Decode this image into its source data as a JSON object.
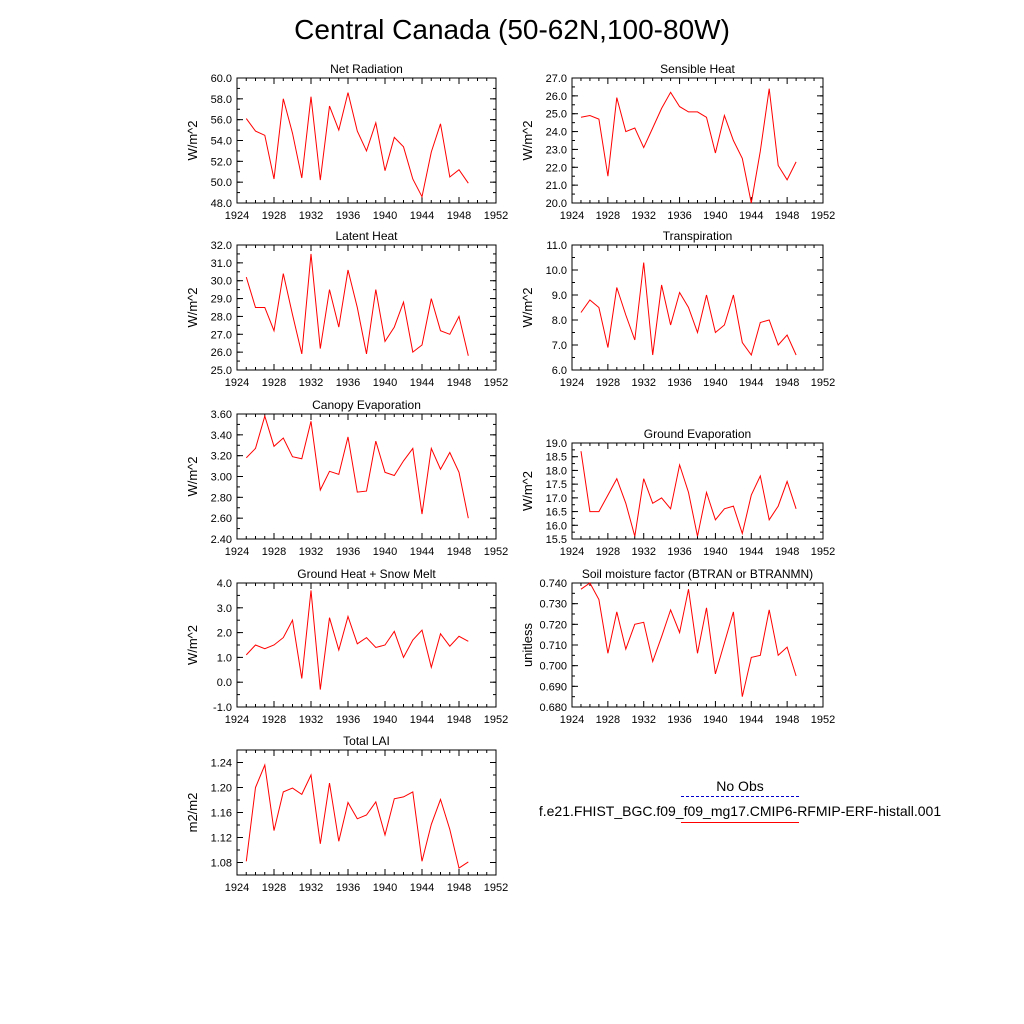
{
  "title": "Central Canada (50-62N,100-80W)",
  "colors": {
    "series": "#ff0000",
    "obs": "#0000cc",
    "axis": "#000000"
  },
  "legend": {
    "obs_label": "No Obs",
    "model_label": "f.e21.FHIST_BGC.f09_f09_mg17.CMIP6-RFMIP-ERF-histall.001"
  },
  "chart_data": [
    {
      "type": "line",
      "title": "Net Radiation",
      "xlabel": "",
      "ylabel": "W/m^2",
      "xlim": [
        1924,
        1952
      ],
      "ylim": [
        48,
        60
      ],
      "xticks": [
        "1924",
        "1928",
        "1932",
        "1936",
        "1940",
        "1944",
        "1948",
        "1952"
      ],
      "yticks": [
        "48.0",
        "50.0",
        "52.0",
        "54.0",
        "56.0",
        "58.0",
        "60.0"
      ],
      "x": [
        1925,
        1926,
        1927,
        1928,
        1929,
        1930,
        1931,
        1932,
        1933,
        1934,
        1935,
        1936,
        1937,
        1938,
        1939,
        1940,
        1941,
        1942,
        1943,
        1944,
        1945,
        1946,
        1947,
        1948,
        1949
      ],
      "series": [
        {
          "values": [
            56.1,
            54.9,
            54.5,
            50.3,
            58.0,
            54.7,
            50.4,
            58.2,
            50.2,
            57.3,
            55.0,
            58.6,
            54.9,
            53.0,
            55.7,
            51.1,
            54.3,
            53.4,
            50.3,
            48.6,
            52.9,
            55.6,
            50.5,
            51.2,
            49.9
          ]
        }
      ]
    },
    {
      "type": "line",
      "title": "Sensible Heat",
      "xlabel": "",
      "ylabel": "W/m^2",
      "xlim": [
        1924,
        1952
      ],
      "ylim": [
        20,
        27
      ],
      "xticks": [
        "1924",
        "1928",
        "1932",
        "1936",
        "1940",
        "1944",
        "1948",
        "1952"
      ],
      "yticks": [
        "20.0",
        "21.0",
        "22.0",
        "23.0",
        "24.0",
        "25.0",
        "26.0",
        "27.0"
      ],
      "x": [
        1925,
        1926,
        1927,
        1928,
        1929,
        1930,
        1931,
        1932,
        1933,
        1934,
        1935,
        1936,
        1937,
        1938,
        1939,
        1940,
        1941,
        1942,
        1943,
        1944,
        1945,
        1946,
        1947,
        1948,
        1949
      ],
      "series": [
        {
          "values": [
            24.8,
            24.9,
            24.7,
            21.5,
            25.9,
            24.0,
            24.2,
            23.1,
            24.2,
            25.3,
            26.2,
            25.4,
            25.1,
            25.1,
            24.8,
            22.8,
            24.9,
            23.5,
            22.5,
            20.0,
            22.9,
            26.4,
            22.1,
            21.3,
            22.3
          ]
        }
      ]
    },
    {
      "type": "line",
      "title": "Latent Heat",
      "xlabel": "",
      "ylabel": "W/m^2",
      "xlim": [
        1924,
        1952
      ],
      "ylim": [
        25,
        32
      ],
      "xticks": [
        "1924",
        "1928",
        "1932",
        "1936",
        "1940",
        "1944",
        "1948",
        "1952"
      ],
      "yticks": [
        "25.0",
        "26.0",
        "27.0",
        "28.0",
        "29.0",
        "30.0",
        "31.0",
        "32.0"
      ],
      "x": [
        1925,
        1926,
        1927,
        1928,
        1929,
        1930,
        1931,
        1932,
        1933,
        1934,
        1935,
        1936,
        1937,
        1938,
        1939,
        1940,
        1941,
        1942,
        1943,
        1944,
        1945,
        1946,
        1947,
        1948,
        1949
      ],
      "series": [
        {
          "values": [
            30.2,
            28.5,
            28.5,
            27.2,
            30.4,
            28.1,
            25.9,
            31.5,
            26.2,
            29.5,
            27.4,
            30.6,
            28.5,
            25.9,
            29.5,
            26.6,
            27.4,
            28.8,
            26.0,
            26.4,
            29.0,
            27.2,
            27.0,
            28.0,
            25.8
          ]
        }
      ]
    },
    {
      "type": "line",
      "title": "Transpiration",
      "xlabel": "",
      "ylabel": "W/m^2",
      "xlim": [
        1924,
        1952
      ],
      "ylim": [
        6,
        11
      ],
      "xticks": [
        "1924",
        "1928",
        "1932",
        "1936",
        "1940",
        "1944",
        "1948",
        "1952"
      ],
      "yticks": [
        "6.0",
        "7.0",
        "8.0",
        "9.0",
        "10.0",
        "11.0"
      ],
      "x": [
        1925,
        1926,
        1927,
        1928,
        1929,
        1930,
        1931,
        1932,
        1933,
        1934,
        1935,
        1936,
        1937,
        1938,
        1939,
        1940,
        1941,
        1942,
        1943,
        1944,
        1945,
        1946,
        1947,
        1948,
        1949
      ],
      "series": [
        {
          "values": [
            8.3,
            8.8,
            8.5,
            6.9,
            9.3,
            8.2,
            7.2,
            10.3,
            6.6,
            9.4,
            7.8,
            9.1,
            8.5,
            7.5,
            9.0,
            7.5,
            7.8,
            9.0,
            7.1,
            6.6,
            7.9,
            8.0,
            7.0,
            7.4,
            6.6
          ]
        }
      ]
    },
    {
      "type": "line",
      "title": "Canopy Evaporation",
      "xlabel": "",
      "ylabel": "W/m^2",
      "xlim": [
        1924,
        1952
      ],
      "ylim": [
        2.4,
        3.6
      ],
      "xticks": [
        "1924",
        "1928",
        "1932",
        "1936",
        "1940",
        "1944",
        "1948",
        "1952"
      ],
      "yticks": [
        "2.40",
        "2.60",
        "2.80",
        "3.00",
        "3.20",
        "3.40",
        "3.60"
      ],
      "x": [
        1925,
        1926,
        1927,
        1928,
        1929,
        1930,
        1931,
        1932,
        1933,
        1934,
        1935,
        1936,
        1937,
        1938,
        1939,
        1940,
        1941,
        1942,
        1943,
        1944,
        1945,
        1946,
        1947,
        1948,
        1949
      ],
      "series": [
        {
          "values": [
            3.18,
            3.27,
            3.58,
            3.29,
            3.37,
            3.19,
            3.17,
            3.53,
            2.87,
            3.05,
            3.02,
            3.38,
            2.85,
            2.86,
            3.34,
            3.04,
            3.01,
            3.15,
            3.27,
            2.64,
            3.27,
            3.07,
            3.23,
            3.04,
            2.6
          ]
        }
      ]
    },
    {
      "type": "line",
      "title": "Ground Evaporation",
      "xlabel": "",
      "ylabel": "W/m^2",
      "xlim": [
        1924,
        1952
      ],
      "ylim": [
        15.5,
        19
      ],
      "xticks": [
        "1924",
        "1928",
        "1932",
        "1936",
        "1940",
        "1944",
        "1948",
        "1952"
      ],
      "yticks": [
        "15.5",
        "16.0",
        "16.5",
        "17.0",
        "17.5",
        "18.0",
        "18.5",
        "19.0"
      ],
      "x": [
        1925,
        1926,
        1927,
        1928,
        1929,
        1930,
        1931,
        1932,
        1933,
        1934,
        1935,
        1936,
        1937,
        1938,
        1939,
        1940,
        1941,
        1942,
        1943,
        1944,
        1945,
        1946,
        1947,
        1948,
        1949
      ],
      "series": [
        {
          "values": [
            18.7,
            16.5,
            16.5,
            17.1,
            17.7,
            16.8,
            15.6,
            17.7,
            16.8,
            17.0,
            16.6,
            18.2,
            17.2,
            15.6,
            17.2,
            16.2,
            16.6,
            16.7,
            15.7,
            17.1,
            17.8,
            16.2,
            16.7,
            17.6,
            16.6
          ]
        }
      ]
    },
    {
      "type": "line",
      "title": "Ground Heat + Snow Melt",
      "xlabel": "",
      "ylabel": "W/m^2",
      "xlim": [
        1924,
        1952
      ],
      "ylim": [
        -1,
        4
      ],
      "xticks": [
        "1924",
        "1928",
        "1932",
        "1936",
        "1940",
        "1944",
        "1948",
        "1952"
      ],
      "yticks": [
        "-1.0",
        "0.0",
        "1.0",
        "2.0",
        "3.0",
        "4.0"
      ],
      "x": [
        1925,
        1926,
        1927,
        1928,
        1929,
        1930,
        1931,
        1932,
        1933,
        1934,
        1935,
        1936,
        1937,
        1938,
        1939,
        1940,
        1941,
        1942,
        1943,
        1944,
        1945,
        1946,
        1947,
        1948,
        1949
      ],
      "series": [
        {
          "values": [
            1.1,
            1.5,
            1.35,
            1.5,
            1.8,
            2.5,
            0.15,
            3.7,
            -0.3,
            2.6,
            1.3,
            2.65,
            1.55,
            1.8,
            1.4,
            1.5,
            2.05,
            1.0,
            1.7,
            2.1,
            0.6,
            1.95,
            1.45,
            1.85,
            1.65
          ]
        }
      ]
    },
    {
      "type": "line",
      "title": "Soil moisture factor (BTRAN or BTRANMN)",
      "xlabel": "",
      "ylabel": "unitless",
      "xlim": [
        1924,
        1952
      ],
      "ylim": [
        0.68,
        0.74
      ],
      "xticks": [
        "1924",
        "1928",
        "1932",
        "1936",
        "1940",
        "1944",
        "1948",
        "1952"
      ],
      "yticks": [
        "0.680",
        "0.690",
        "0.700",
        "0.710",
        "0.720",
        "0.730",
        "0.740"
      ],
      "x": [
        1925,
        1926,
        1927,
        1928,
        1929,
        1930,
        1931,
        1932,
        1933,
        1934,
        1935,
        1936,
        1937,
        1938,
        1939,
        1940,
        1941,
        1942,
        1943,
        1944,
        1945,
        1946,
        1947,
        1948,
        1949
      ],
      "series": [
        {
          "values": [
            0.737,
            0.74,
            0.732,
            0.706,
            0.726,
            0.708,
            0.72,
            0.721,
            0.702,
            0.714,
            0.727,
            0.716,
            0.737,
            0.706,
            0.728,
            0.696,
            0.711,
            0.726,
            0.685,
            0.704,
            0.705,
            0.727,
            0.705,
            0.709,
            0.695
          ]
        }
      ]
    },
    {
      "type": "line",
      "title": "Total LAI",
      "xlabel": "",
      "ylabel": "m2/m2",
      "xlim": [
        1924,
        1952
      ],
      "ylim": [
        1.06,
        1.26
      ],
      "xticks": [
        "1924",
        "1928",
        "1932",
        "1936",
        "1940",
        "1944",
        "1948",
        "1952"
      ],
      "yticks": [
        "1.08",
        "1.12",
        "1.16",
        "1.20",
        "1.24"
      ],
      "x": [
        1925,
        1926,
        1927,
        1928,
        1929,
        1930,
        1931,
        1932,
        1933,
        1934,
        1935,
        1936,
        1937,
        1938,
        1939,
        1940,
        1941,
        1942,
        1943,
        1944,
        1945,
        1946,
        1947,
        1948,
        1949
      ],
      "series": [
        {
          "values": [
            1.082,
            1.2,
            1.236,
            1.131,
            1.193,
            1.199,
            1.189,
            1.22,
            1.11,
            1.207,
            1.114,
            1.176,
            1.15,
            1.156,
            1.177,
            1.124,
            1.182,
            1.185,
            1.193,
            1.082,
            1.141,
            1.181,
            1.133,
            1.071,
            1.081
          ]
        }
      ]
    }
  ]
}
